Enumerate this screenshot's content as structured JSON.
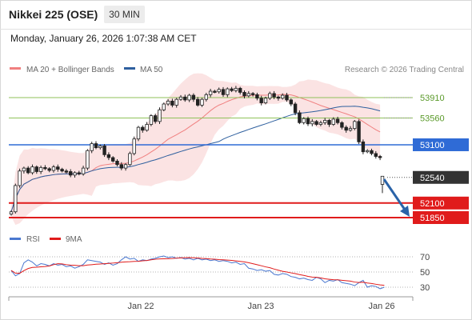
{
  "header": {
    "title": "Nikkei 225 (OSE)",
    "timeframe": "30 MIN"
  },
  "datetime": "Monday, January 26, 2026 1:07:38 AM CET",
  "legend": {
    "ma20": "MA 20 + Bollinger Bands",
    "ma50": "MA 50",
    "source": "Research © 2026 Trading Central"
  },
  "rsi_legend": {
    "rsi": "RSI",
    "ma9": "9MA"
  },
  "x_labels": [
    "Jan 22",
    "Jan 23",
    "Jan 26"
  ],
  "rsi_levels": [
    70,
    50,
    30
  ],
  "colors": {
    "green_level": "#8fc25a",
    "blue_level": "#2f6bd6",
    "red_level": "#e01b1b",
    "dark_label": "#333333",
    "bollinger": "#fadada",
    "ma20": "#f08080",
    "ma50": "#2e5f9e",
    "rsi": "#4a78d0",
    "ma9": "#e01b1b",
    "candle": "#222222",
    "arrow": "#2a63a8"
  },
  "chart_data": {
    "type": "line",
    "price_range": [
      51800,
      54000
    ],
    "levels": [
      {
        "value": 53910,
        "label": "53910",
        "style": "green"
      },
      {
        "value": 53560,
        "label": "53560",
        "style": "green"
      },
      {
        "value": 53100,
        "label": "53100",
        "style": "blue"
      },
      {
        "value": 52540,
        "label": "52540",
        "style": "current"
      },
      {
        "value": 52100,
        "label": "52100",
        "style": "red"
      },
      {
        "value": 51850,
        "label": "51850",
        "style": "red"
      }
    ],
    "close": [
      51950,
      52400,
      52650,
      52700,
      52620,
      52720,
      52640,
      52710,
      52690,
      52660,
      52720,
      52680,
      52650,
      52640,
      52580,
      52620,
      52600,
      52700,
      53000,
      53120,
      53050,
      53080,
      52930,
      52880,
      52820,
      52760,
      52700,
      52760,
      52950,
      53200,
      53400,
      53350,
      53450,
      53600,
      53500,
      53700,
      53800,
      53850,
      53780,
      53880,
      53920,
      53870,
      53950,
      53880,
      53780,
      53880,
      53960,
      54020,
      54010,
      54050,
      53960,
      54060,
      54030,
      54070,
      54000,
      53940,
      53980,
      53960,
      53900,
      53820,
      53900,
      53980,
      53920,
      53900,
      53950,
      53870,
      53800,
      53650,
      53480,
      53550,
      53460,
      53500,
      53450,
      53480,
      53520,
      53450,
      53540,
      53480,
      53400,
      53350,
      53380,
      53500,
      53150,
      52980,
      53000,
      52950,
      52900,
      52880
    ],
    "after_gap_close": 52540,
    "rsi": [
      52,
      45,
      48,
      62,
      66,
      63,
      58,
      61,
      60,
      58,
      61,
      59,
      60,
      57,
      58,
      55,
      57,
      60,
      66,
      65,
      64,
      63,
      60,
      62,
      59,
      61,
      66,
      70,
      67,
      68,
      64,
      66,
      65,
      67,
      68,
      70,
      71,
      69,
      70,
      68,
      69,
      67,
      68,
      66,
      68,
      66,
      67,
      65,
      66,
      64,
      65,
      64,
      62,
      63,
      60,
      61,
      55,
      54,
      52,
      53,
      51,
      52,
      47,
      46,
      48,
      47,
      44,
      43,
      41,
      42,
      40,
      39,
      43,
      41,
      36,
      39,
      38,
      40,
      36,
      35,
      34,
      32,
      36,
      39,
      30,
      32,
      31,
      28,
      30
    ]
  }
}
